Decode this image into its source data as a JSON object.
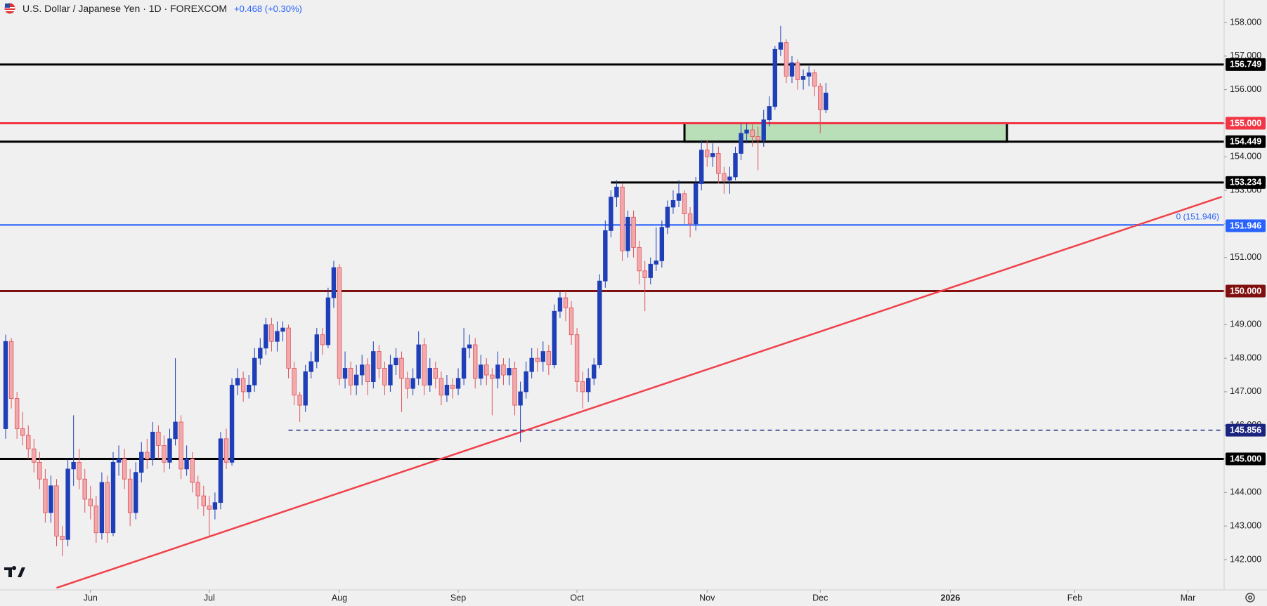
{
  "header": {
    "symbol": "U.S. Dollar / Japanese Yen · 1D · FOREXCOM",
    "change": "+0.468 (+0.30%)"
  },
  "chart_data": {
    "type": "candlestick",
    "up_color": "#1e3fb8",
    "down_color": "#e0525a",
    "down_fill": "#f2a9ac",
    "xlim": [
      -1,
      215.4
    ],
    "ylim": [
      141.1,
      158.67
    ],
    "xticks": [
      {
        "value": 15,
        "label": "Jun"
      },
      {
        "value": 36,
        "label": "Jul"
      },
      {
        "value": 59,
        "label": "Aug"
      },
      {
        "value": 80,
        "label": "Sep"
      },
      {
        "value": 101,
        "label": "Oct"
      },
      {
        "value": 124,
        "label": "Nov"
      },
      {
        "value": 144,
        "label": "Dec"
      },
      {
        "value": 167,
        "label": "2026"
      },
      {
        "value": 189,
        "label": "Feb"
      },
      {
        "value": 209,
        "label": "Mar"
      }
    ],
    "yticks": [
      {
        "value": 142,
        "label": "142.000"
      },
      {
        "value": 143,
        "label": "143.000"
      },
      {
        "value": 144,
        "label": "144.000"
      },
      {
        "value": 145,
        "label": "145.000"
      },
      {
        "value": 146,
        "label": "146.000"
      },
      {
        "value": 147,
        "label": "147.000"
      },
      {
        "value": 148,
        "label": "148.000"
      },
      {
        "value": 149,
        "label": "149.000"
      },
      {
        "value": 150,
        "label": "150.000"
      },
      {
        "value": 151,
        "label": "151.000"
      },
      {
        "value": 152,
        "label": "152.000"
      },
      {
        "value": 153,
        "label": "153.000"
      },
      {
        "value": 154,
        "label": "154.000"
      },
      {
        "value": 155,
        "label": "155.000"
      },
      {
        "value": 156,
        "label": "156.000"
      },
      {
        "value": 157,
        "label": "157.000"
      },
      {
        "value": 158,
        "label": "158.000"
      }
    ],
    "open": [
      145.9,
      148.5,
      146.8,
      145.9,
      145.7,
      145.3,
      144.9,
      144.4,
      143.4,
      144.2,
      142.7,
      142.6,
      144.7,
      144.9,
      144.4,
      143.8,
      143.6,
      142.8,
      144.3,
      142.8,
      144.9,
      145.0,
      144.4,
      143.4,
      144.6,
      145.2,
      145.0,
      145.8,
      145.4,
      144.9,
      145.6,
      146.1,
      144.7,
      145.0,
      144.3,
      143.9,
      143.6,
      143.5,
      143.7,
      145.6,
      144.9,
      147.2,
      147.4,
      147.0,
      147.2,
      148.0,
      148.3,
      149.0,
      148.5,
      148.8,
      148.9,
      147.7,
      146.9,
      146.6,
      147.6,
      147.9,
      148.7,
      148.4,
      149.8,
      150.7,
      147.4,
      147.7,
      147.2,
      147.5,
      147.8,
      147.3,
      148.2,
      147.7,
      147.2,
      147.8,
      148.0,
      147.4,
      147.1,
      147.4,
      148.4,
      147.2,
      147.7,
      147.4,
      146.9,
      147.2,
      147.1,
      147.4,
      148.3,
      148.4,
      147.4,
      147.8,
      147.5,
      147.4,
      147.8,
      147.5,
      147.7,
      146.6,
      147.0,
      147.6,
      148.0,
      147.9,
      148.2,
      147.8,
      149.4,
      149.8,
      149.5,
      148.7,
      147.3,
      147.0,
      147.4,
      147.8,
      150.3,
      151.8,
      152.8,
      153.1,
      151.2,
      152.2,
      151.3,
      150.6,
      150.4,
      150.8,
      150.9,
      151.9,
      152.5,
      152.7,
      152.9,
      152.3,
      152.0,
      153.2,
      154.2,
      154.0,
      154.1,
      153.5,
      153.3,
      153.4,
      154.1,
      154.7,
      154.8,
      154.6,
      154.5,
      155.1,
      155.5,
      157.2,
      157.4,
      156.4,
      156.8,
      156.3,
      156.4,
      156.5,
      156.1,
      155.4
    ],
    "high": [
      148.7,
      148.6,
      147.0,
      146.4,
      146.0,
      145.6,
      145.2,
      144.7,
      144.5,
      144.4,
      143.0,
      145.0,
      146.3,
      145.3,
      144.7,
      144.2,
      143.9,
      144.6,
      144.5,
      145.2,
      145.4,
      145.3,
      144.7,
      144.9,
      145.5,
      145.6,
      146.1,
      146.0,
      145.7,
      145.9,
      148.0,
      146.3,
      145.4,
      145.2,
      144.5,
      144.2,
      143.9,
      144.0,
      145.8,
      145.9,
      147.4,
      147.7,
      147.6,
      147.5,
      148.3,
      148.6,
      149.2,
      149.2,
      149.1,
      149.1,
      149.0,
      147.9,
      147.0,
      147.8,
      148.2,
      148.9,
      148.9,
      150.1,
      150.9,
      150.8,
      148.2,
      147.9,
      147.8,
      148.1,
      148.0,
      148.5,
      148.4,
      147.9,
      148.1,
      148.3,
      148.2,
      147.6,
      147.7,
      148.8,
      148.6,
      148.0,
      147.9,
      147.6,
      147.5,
      147.4,
      147.7,
      148.9,
      148.7,
      148.6,
      148.1,
      148.0,
      147.7,
      148.2,
      148.0,
      148.0,
      147.9,
      147.3,
      147.9,
      148.3,
      148.3,
      148.5,
      148.4,
      149.6,
      150.0,
      150.0,
      149.7,
      148.9,
      147.6,
      147.7,
      148.0,
      150.5,
      152.1,
      153.0,
      153.3,
      153.2,
      152.4,
      152.4,
      151.5,
      150.9,
      151.0,
      151.9,
      152.1,
      152.7,
      153.0,
      153.3,
      153.0,
      152.5,
      153.4,
      154.5,
      154.5,
      154.4,
      154.3,
      153.7,
      153.7,
      154.3,
      155.0,
      155.0,
      155.0,
      154.9,
      155.4,
      155.8,
      157.3,
      157.9,
      157.5,
      157.0,
      156.9,
      156.6,
      156.7,
      156.6,
      156.2,
      156.2
    ],
    "low": [
      145.6,
      146.5,
      145.6,
      145.4,
      145.0,
      144.6,
      144.1,
      143.1,
      143.1,
      142.4,
      142.1,
      142.4,
      144.2,
      144.1,
      143.4,
      143.2,
      142.5,
      142.6,
      142.5,
      142.7,
      144.5,
      144.1,
      143.0,
      143.2,
      144.3,
      144.7,
      144.8,
      145.0,
      144.6,
      144.7,
      145.4,
      144.4,
      144.5,
      144.0,
      143.5,
      143.3,
      142.7,
      143.2,
      143.5,
      144.7,
      144.8,
      146.9,
      146.7,
      146.8,
      147.0,
      147.8,
      148.1,
      148.2,
      148.2,
      148.5,
      147.4,
      146.6,
      146.1,
      146.4,
      147.4,
      147.7,
      148.1,
      148.3,
      149.5,
      147.2,
      147.1,
      146.9,
      146.9,
      147.2,
      146.9,
      147.1,
      147.4,
      146.9,
      147.0,
      147.5,
      146.4,
      146.8,
      146.9,
      147.2,
      146.9,
      147.0,
      147.1,
      146.6,
      146.7,
      146.8,
      146.9,
      147.2,
      148.0,
      147.1,
      147.2,
      147.2,
      146.3,
      147.1,
      147.2,
      147.2,
      146.3,
      145.5,
      146.8,
      147.4,
      147.6,
      147.6,
      147.5,
      147.7,
      149.2,
      149.1,
      148.4,
      147.0,
      146.5,
      146.7,
      147.2,
      147.7,
      150.1,
      151.6,
      152.5,
      150.9,
      151.0,
      151.0,
      150.2,
      149.4,
      150.2,
      150.6,
      150.7,
      151.7,
      152.3,
      152.5,
      152.0,
      151.6,
      151.8,
      153.0,
      153.7,
      153.7,
      153.2,
      152.9,
      152.9,
      153.3,
      153.9,
      154.4,
      154.3,
      153.6,
      154.3,
      154.9,
      155.4,
      157.0,
      156.2,
      156.2,
      156.0,
      156.0,
      156.1,
      155.8,
      154.7,
      155.3
    ],
    "close": [
      148.5,
      146.8,
      145.9,
      145.7,
      145.3,
      144.9,
      144.4,
      143.4,
      144.2,
      142.7,
      142.6,
      144.7,
      144.9,
      144.4,
      143.8,
      143.6,
      142.8,
      144.3,
      142.8,
      144.9,
      145.0,
      144.4,
      143.4,
      144.6,
      145.2,
      145.0,
      145.8,
      145.4,
      144.9,
      145.6,
      146.1,
      144.7,
      145.0,
      144.3,
      143.9,
      143.6,
      143.5,
      143.7,
      145.6,
      144.9,
      147.2,
      147.4,
      147.0,
      147.2,
      148.0,
      148.3,
      149.0,
      148.5,
      148.8,
      148.9,
      147.7,
      146.9,
      146.6,
      147.6,
      147.9,
      148.7,
      148.4,
      149.8,
      150.7,
      147.4,
      147.7,
      147.2,
      147.5,
      147.8,
      147.3,
      148.2,
      147.7,
      147.2,
      147.8,
      148.0,
      147.4,
      147.1,
      147.4,
      148.4,
      147.2,
      147.7,
      147.4,
      146.9,
      147.2,
      147.1,
      147.4,
      148.3,
      148.4,
      147.4,
      147.8,
      147.5,
      147.4,
      147.8,
      147.5,
      147.7,
      146.6,
      147.0,
      147.6,
      148.0,
      147.9,
      148.2,
      147.8,
      149.4,
      149.8,
      149.5,
      148.7,
      147.3,
      147.0,
      147.4,
      147.8,
      150.3,
      151.8,
      152.8,
      153.1,
      151.2,
      152.2,
      151.3,
      150.6,
      150.4,
      150.8,
      150.9,
      151.9,
      152.5,
      152.7,
      152.9,
      152.3,
      152.0,
      153.2,
      154.2,
      154.0,
      154.1,
      153.5,
      153.3,
      153.4,
      154.1,
      154.7,
      154.8,
      154.6,
      154.5,
      155.1,
      155.5,
      157.2,
      157.4,
      156.4,
      156.8,
      156.3,
      156.4,
      156.5,
      156.1,
      155.4,
      155.9
    ],
    "zone": {
      "from": 120,
      "to": 177,
      "top": 155,
      "bottom": 154.449,
      "color": "#b9dfb9"
    },
    "trendline": {
      "color": "#f0404a",
      "points": [
        [
          9,
          141.16
        ],
        [
          215,
          152.81
        ]
      ]
    },
    "levels": [
      {
        "price": 156.749,
        "color": "#000000",
        "width": 3
      },
      {
        "price": 155,
        "label": "155.000",
        "color": "#f23645",
        "width": 3
      },
      {
        "price": 154.449,
        "color": "#000000",
        "width": 3
      },
      {
        "price": 153.234,
        "color": "#000000",
        "width": 3,
        "from": 107
      },
      {
        "price": 151.946,
        "color": "#2962ff",
        "width": 1,
        "note": "0 (151.946)"
      },
      {
        "price": 150,
        "label": "150.000",
        "color": "#801010",
        "width": 3
      },
      {
        "price": 145.856,
        "color": "#1a237e",
        "width": 1.5,
        "dashed": true,
        "from": 50
      },
      {
        "price": 145,
        "label": "145.000",
        "color": "#000000",
        "width": 3
      }
    ]
  }
}
